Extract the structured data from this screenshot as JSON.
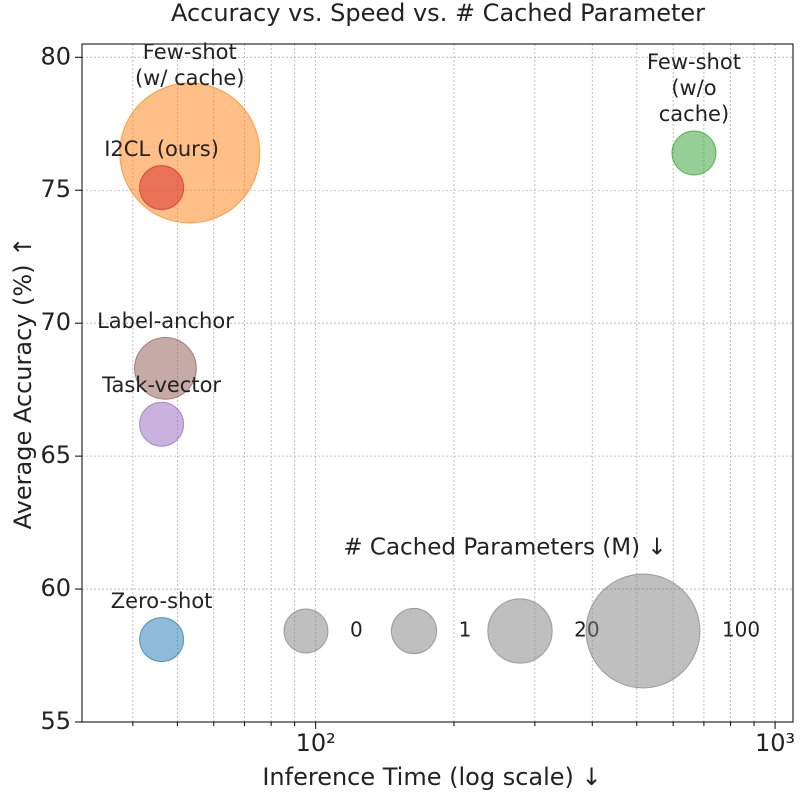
{
  "chart_data": {
    "type": "scatter",
    "title": "Accuracy vs. Speed vs. # Cached Parameter",
    "xlabel": "Inference Time (log scale) ↓",
    "ylabel": "Average Accuracy (%) ↑",
    "xscale": "log",
    "xlim": [
      31,
      1094
    ],
    "ylim": [
      55,
      80.5
    ],
    "xticks": [
      {
        "value": 100,
        "label": "10²"
      },
      {
        "value": 1000,
        "label": "10³"
      }
    ],
    "xminorticks": [
      40,
      50,
      60,
      70,
      80,
      90,
      200,
      300,
      400,
      500,
      600,
      700,
      800,
      900
    ],
    "yticks": [
      55,
      60,
      65,
      70,
      75,
      80
    ],
    "grid": true,
    "series": [
      {
        "name": "Few-shot\n(w/ cache)",
        "color": "#ff7f0e",
        "x": [
          53.2
        ],
        "values": [
          76.4
        ],
        "sizes": [
          160
        ]
      },
      {
        "name": "I2CL (ours)",
        "color": "#d62728",
        "x": [
          46.2
        ],
        "values": [
          75.1
        ],
        "sizes": [
          0
        ]
      },
      {
        "name": "Few-shot\n(w/o cache)",
        "color": "#2ca02c",
        "x": [
          666
        ],
        "values": [
          76.4
        ],
        "sizes": [
          0
        ]
      },
      {
        "name": "Label-anchor",
        "color": "#8c564b",
        "x": [
          47.1
        ],
        "values": [
          68.3
        ],
        "sizes": [
          17
        ]
      },
      {
        "name": "Task-vector",
        "color": "#9467bd",
        "x": [
          46.2
        ],
        "values": [
          66.2
        ],
        "sizes": [
          0
        ]
      },
      {
        "name": "Zero-shot",
        "color": "#1f77b4",
        "x": [
          46.2
        ],
        "values": [
          58.1
        ],
        "sizes": [
          0
        ]
      }
    ],
    "size_legend": {
      "title": "# Cached Parameters (M) ↓",
      "color": "#808080",
      "values": [
        0,
        1,
        20,
        100
      ]
    }
  }
}
